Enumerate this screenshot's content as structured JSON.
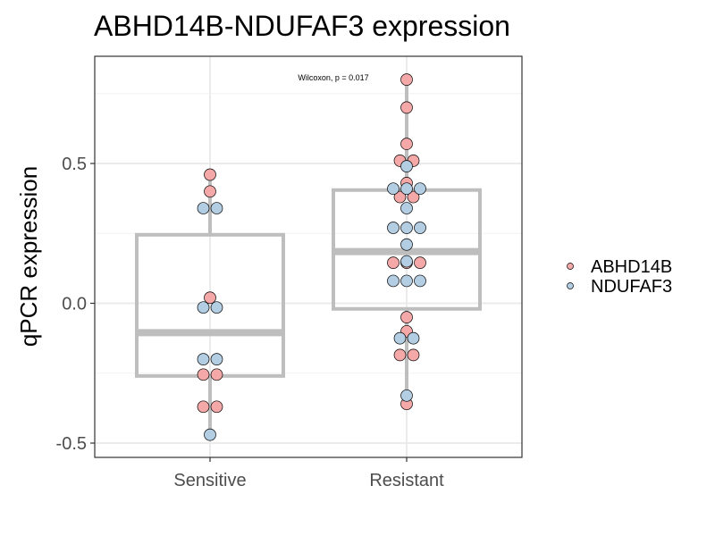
{
  "chart_data": {
    "type": "boxplot",
    "title": "ABHD14B-NDUFAF3 expression",
    "xlabel": "",
    "ylabel": "qPCR expression",
    "categories": [
      "Sensitive",
      "Resistant"
    ],
    "y_ticks": [
      "-0.5",
      "0.0",
      "0.5"
    ],
    "y_tick_values": [
      -0.5,
      0.0,
      0.5
    ],
    "ylim": [
      -0.55,
      0.85
    ],
    "grid": true,
    "annotation": "Wilcoxon, p = 0.017",
    "legend_position": "right",
    "box_color": "#bebebe",
    "boxes": [
      {
        "category": "Sensitive",
        "q1": -0.26,
        "median": -0.105,
        "q3": 0.245,
        "whisker_low": -0.47,
        "whisker_high": 0.46
      },
      {
        "category": "Resistant",
        "q1": -0.02,
        "median": 0.185,
        "q3": 0.405,
        "whisker_low": -0.36,
        "whisker_high": 0.8
      }
    ],
    "series": [
      {
        "name": "ABHD14B",
        "color": "#f4a9a8",
        "points": [
          {
            "category": "Sensitive",
            "y": 0.46
          },
          {
            "category": "Sensitive",
            "y": 0.4
          },
          {
            "category": "Sensitive",
            "y": 0.02
          },
          {
            "category": "Sensitive",
            "y": -0.255
          },
          {
            "category": "Sensitive",
            "y": -0.255
          },
          {
            "category": "Sensitive",
            "y": -0.37
          },
          {
            "category": "Sensitive",
            "y": -0.37
          },
          {
            "category": "Resistant",
            "y": 0.8
          },
          {
            "category": "Resistant",
            "y": 0.7
          },
          {
            "category": "Resistant",
            "y": 0.57
          },
          {
            "category": "Resistant",
            "y": 0.51
          },
          {
            "category": "Resistant",
            "y": 0.51
          },
          {
            "category": "Resistant",
            "y": 0.43
          },
          {
            "category": "Resistant",
            "y": 0.38
          },
          {
            "category": "Resistant",
            "y": 0.38
          },
          {
            "category": "Resistant",
            "y": 0.145
          },
          {
            "category": "Resistant",
            "y": 0.145
          },
          {
            "category": "Resistant",
            "y": 0.145
          },
          {
            "category": "Resistant",
            "y": -0.05
          },
          {
            "category": "Resistant",
            "y": -0.1
          },
          {
            "category": "Resistant",
            "y": -0.185
          },
          {
            "category": "Resistant",
            "y": -0.185
          },
          {
            "category": "Resistant",
            "y": -0.36
          }
        ]
      },
      {
        "name": "NDUFAF3",
        "color": "#b3cde3",
        "points": [
          {
            "category": "Sensitive",
            "y": 0.34
          },
          {
            "category": "Sensitive",
            "y": 0.34
          },
          {
            "category": "Sensitive",
            "y": -0.015
          },
          {
            "category": "Sensitive",
            "y": -0.015
          },
          {
            "category": "Sensitive",
            "y": -0.2
          },
          {
            "category": "Sensitive",
            "y": -0.2
          },
          {
            "category": "Sensitive",
            "y": -0.47
          },
          {
            "category": "Resistant",
            "y": 0.49
          },
          {
            "category": "Resistant",
            "y": 0.41
          },
          {
            "category": "Resistant",
            "y": 0.41
          },
          {
            "category": "Resistant",
            "y": 0.41
          },
          {
            "category": "Resistant",
            "y": 0.34
          },
          {
            "category": "Resistant",
            "y": 0.27
          },
          {
            "category": "Resistant",
            "y": 0.27
          },
          {
            "category": "Resistant",
            "y": 0.27
          },
          {
            "category": "Resistant",
            "y": 0.21
          },
          {
            "category": "Resistant",
            "y": 0.15
          },
          {
            "category": "Resistant",
            "y": 0.08
          },
          {
            "category": "Resistant",
            "y": 0.08
          },
          {
            "category": "Resistant",
            "y": 0.08
          },
          {
            "category": "Resistant",
            "y": -0.125
          },
          {
            "category": "Resistant",
            "y": -0.125
          },
          {
            "category": "Resistant",
            "y": -0.33
          }
        ]
      }
    ]
  }
}
